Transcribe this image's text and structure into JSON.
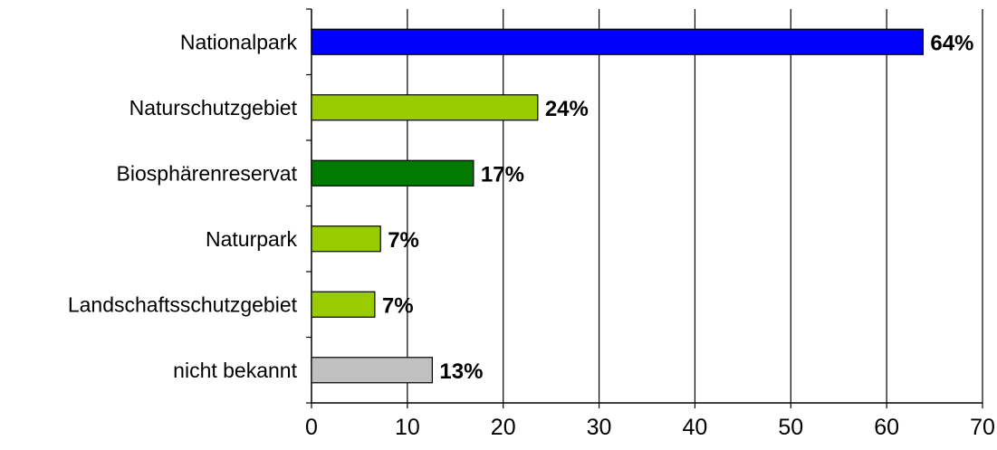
{
  "chart_data": {
    "type": "bar",
    "orientation": "horizontal",
    "categories": [
      "Nationalpark",
      "Naturschutzgebiet",
      "Biosphärenreservat",
      "Naturpark",
      "Landschaftsschutzgebiet",
      "nicht bekannt"
    ],
    "values": [
      63.8,
      23.6,
      16.9,
      7.2,
      6.6,
      12.6
    ],
    "data_labels": [
      "64%",
      "24%",
      "17%",
      "7%",
      "7%",
      "13%"
    ],
    "bar_colors": [
      "#0000ff",
      "#99cc00",
      "#007a00",
      "#99cc00",
      "#99cc00",
      "#c0c0c0"
    ],
    "xlim": [
      0,
      70
    ],
    "x_ticks": [
      0,
      10,
      20,
      30,
      40,
      50,
      60,
      70
    ],
    "title": "",
    "xlabel": "",
    "ylabel": "",
    "grid": "vertical",
    "legend": "none"
  }
}
